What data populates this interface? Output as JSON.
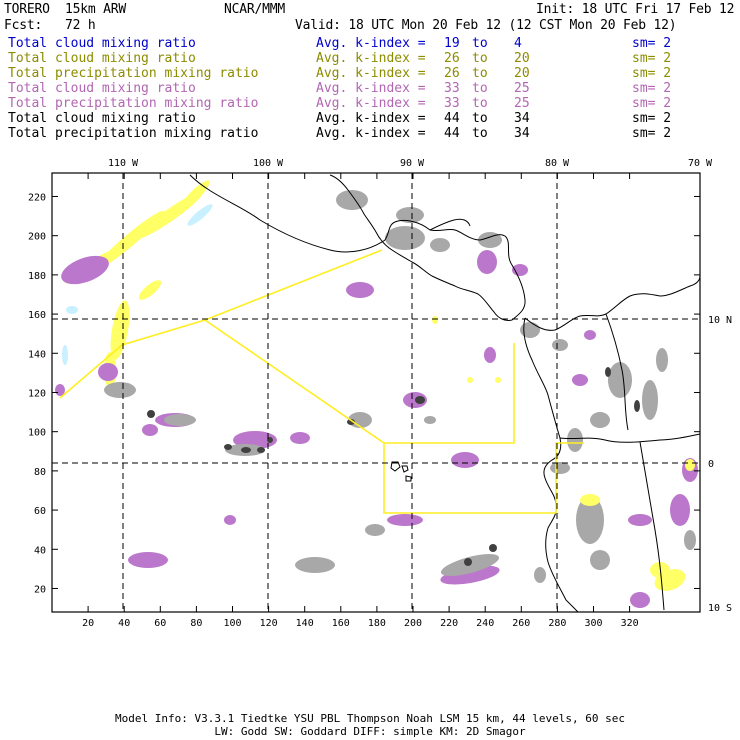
{
  "header": {
    "model": "TORERO  15km ARW",
    "center": "NCAR/MMM",
    "init": "Init: 18 UTC Fri 17 Feb 12",
    "fcst": "Fcst:   72 h",
    "valid": "Valid: 18 UTC Mon 20 Feb 12 (12 CST Mon 20 Feb 12)"
  },
  "legend": [
    {
      "name": "Total cloud mixing ratio",
      "avg": "Avg. k-index =",
      "k1": "19",
      "to": "to",
      "k2": "4",
      "sm": "sm= 2",
      "color": "#0000cc"
    },
    {
      "name": "Total cloud mixing ratio",
      "avg": "Avg. k-index =",
      "k1": "26",
      "to": "to",
      "k2": "20",
      "sm": "sm= 2",
      "color": "#8c8c00"
    },
    {
      "name": "Total precipitation mixing ratio",
      "avg": "Avg. k-index =",
      "k1": "26",
      "to": "to",
      "k2": "20",
      "sm": "sm= 2",
      "color": "#8c8c00"
    },
    {
      "name": "Total cloud mixing ratio",
      "avg": "Avg. k-index =",
      "k1": "33",
      "to": "to",
      "k2": "25",
      "sm": "sm= 2",
      "color": "#b266b2"
    },
    {
      "name": "Total precipitation mixing ratio",
      "avg": "Avg. k-index =",
      "k1": "33",
      "to": "to",
      "k2": "25",
      "sm": "sm= 2",
      "color": "#b266b2"
    },
    {
      "name": "Total cloud mixing ratio",
      "avg": "Avg. k-index =",
      "k1": "44",
      "to": "to",
      "k2": "34",
      "sm": "sm= 2",
      "color": "#000000"
    },
    {
      "name": "Total precipitation mixing ratio",
      "avg": "Avg. k-index =",
      "k1": "44",
      "to": "to",
      "k2": "34",
      "sm": "sm= 2",
      "color": "#000000"
    }
  ],
  "map": {
    "lon_labels": [
      "110 W",
      "100 W",
      "90 W",
      "80 W",
      "70 W"
    ],
    "lat_labels": [
      "10 N",
      "0",
      "10 S"
    ],
    "x_ticks": [
      "20",
      "40",
      "60",
      "80",
      "100",
      "120",
      "140",
      "160",
      "180",
      "200",
      "220",
      "240",
      "260",
      "280",
      "300",
      "320"
    ],
    "y_ticks": [
      "220",
      "200",
      "180",
      "160",
      "140",
      "120",
      "100",
      "80",
      "60",
      "40",
      "20"
    ],
    "colors": {
      "cyan": "#c8f0ff",
      "yellow": "#ffff66",
      "magenta": "#bb77cc",
      "gray": "#a8a8a8",
      "dark": "#404040",
      "box": "#ffee22"
    }
  },
  "footer": {
    "line1": "Model Info: V3.3.1   Tiedtke YSU PBL  Thompson    Noah LSM  15 km,   44 levels,   60 sec",
    "line2": "LW: Godd SW: Goddard DIFF: simple KM: 2D Smagor"
  }
}
